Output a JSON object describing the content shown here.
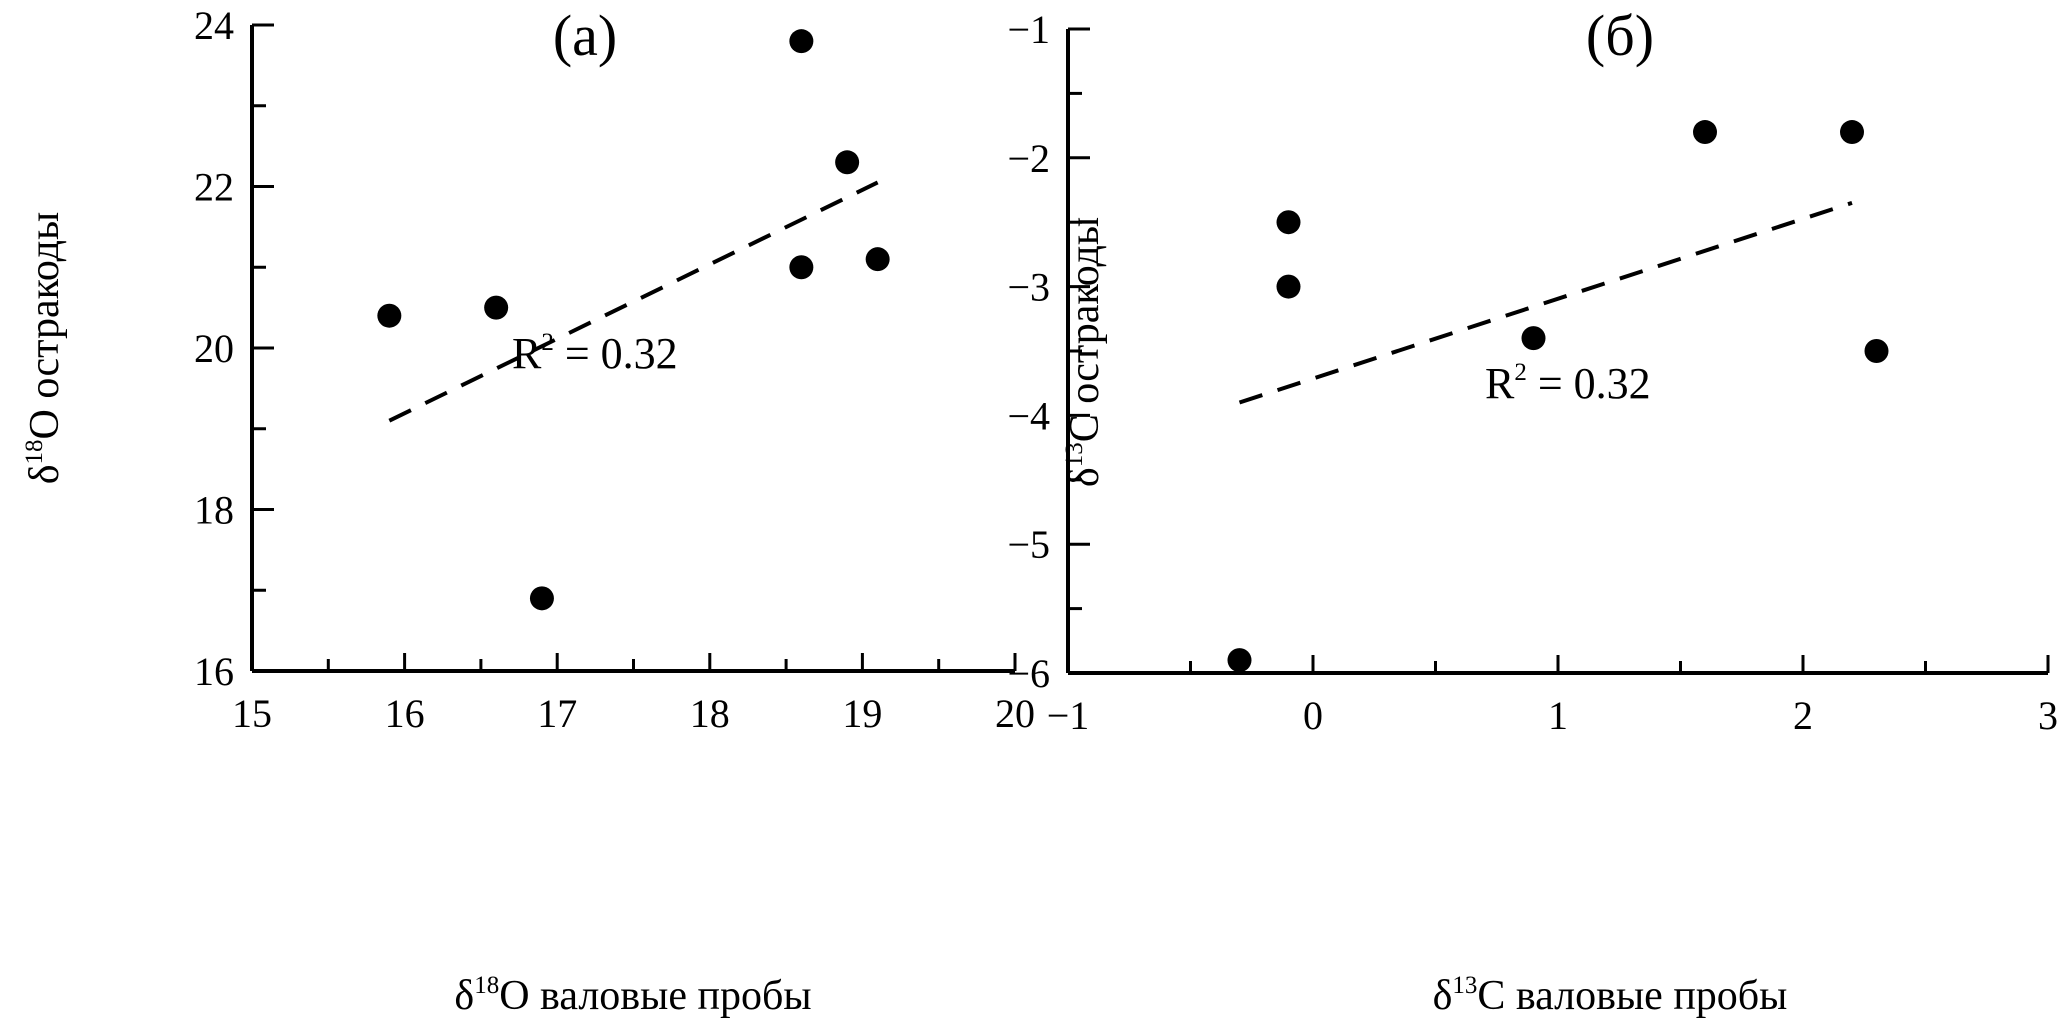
{
  "chart_data": [
    {
      "type": "scatter",
      "panel_label": "(а)",
      "xlabel": {
        "symbol": "δ",
        "sup": "18",
        "rest": "O валовые пробы"
      },
      "ylabel": {
        "symbol": "δ",
        "sup": "18",
        "rest": "O остракоды"
      },
      "xlim": [
        15,
        20
      ],
      "ylim": [
        16,
        24
      ],
      "x_ticks": [
        "15",
        "16",
        "17",
        "18",
        "19",
        "20"
      ],
      "y_ticks": [
        "16",
        "18",
        "20",
        "22",
        "24"
      ],
      "points": [
        {
          "x": 15.9,
          "y": 20.4
        },
        {
          "x": 16.6,
          "y": 20.5
        },
        {
          "x": 16.9,
          "y": 16.9
        },
        {
          "x": 18.6,
          "y": 23.8
        },
        {
          "x": 18.6,
          "y": 21.0
        },
        {
          "x": 18.9,
          "y": 22.3
        },
        {
          "x": 19.1,
          "y": 21.1
        }
      ],
      "trendline": {
        "x1": 15.9,
        "y1": 19.1,
        "x2": 19.1,
        "y2": 22.05,
        "style": "dashed"
      },
      "annotation": {
        "base": "R",
        "sup": "2",
        "rest": " = 0.32"
      },
      "grid": false
    },
    {
      "type": "scatter",
      "panel_label": "(б)",
      "xlabel": {
        "symbol": "δ",
        "sup": "13",
        "rest": "C валовые пробы"
      },
      "ylabel": {
        "symbol": "δ",
        "sup": "13",
        "rest": "C остракоды"
      },
      "xlim": [
        -1,
        3
      ],
      "ylim": [
        -6,
        -1
      ],
      "x_ticks": [
        "−1",
        "0",
        "1",
        "2",
        "3"
      ],
      "y_ticks": [
        "−6",
        "−5",
        "−4",
        "−3",
        "−2",
        "−1"
      ],
      "points": [
        {
          "x": -0.3,
          "y": -5.9
        },
        {
          "x": -0.1,
          "y": -2.5
        },
        {
          "x": -0.1,
          "y": -3.0
        },
        {
          "x": 0.9,
          "y": -3.4
        },
        {
          "x": 1.6,
          "y": -1.8
        },
        {
          "x": 2.2,
          "y": -1.8
        },
        {
          "x": 2.3,
          "y": -3.5
        }
      ],
      "trendline": {
        "x1": -0.3,
        "y1": -3.9,
        "x2": 2.2,
        "y2": -2.35,
        "style": "dashed"
      },
      "annotation": {
        "base": "R",
        "sup": "2",
        "rest": " = 0.32"
      },
      "grid": false
    }
  ]
}
